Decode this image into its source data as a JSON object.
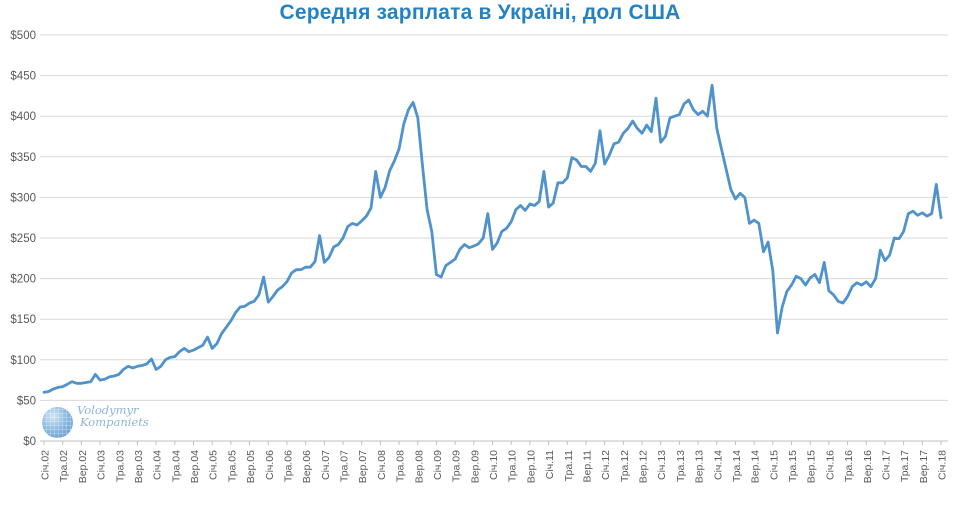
{
  "page": {
    "background": "#ffffff"
  },
  "watermark": {
    "line1": "Volodymyr",
    "line2": "Kompaniets"
  },
  "colors": {
    "title_blue": "#2482c3",
    "line_blue": "#4f92cc",
    "gridline": "#d9d9d9",
    "axis_line": "#bfbfbf",
    "tick_text": "#595959"
  },
  "chart_data": {
    "type": "line",
    "title": "Середня зарплата в Україні, дол США",
    "xlabel": "",
    "ylabel": "",
    "ylim": [
      0,
      500
    ],
    "grid": "horizontal",
    "legend": "none",
    "x_range_note": "monthly data, Jan 2002 - Jan 2018",
    "y_ticks": [
      0,
      50,
      100,
      150,
      200,
      250,
      300,
      350,
      400,
      450,
      500
    ],
    "y_tick_labels": [
      "$0",
      "$50",
      "$100",
      "$150",
      "$200",
      "$250",
      "$300",
      "$350",
      "$400",
      "$450",
      "$500"
    ],
    "x_tick_every_n_points": 4,
    "x_tick_labels": [
      "Січ.02",
      "Тра.02",
      "Вер.02",
      "Січ.03",
      "Тра.03",
      "Вер.03",
      "Січ.04",
      "Тра.04",
      "Вер.04",
      "Січ.05",
      "Тра.05",
      "Вер.05",
      "Січ.06",
      "Тра.06",
      "Вер.06",
      "Січ.07",
      "Тра.07",
      "Вер.07",
      "Січ.08",
      "Тра.08",
      "Вер.08",
      "Січ.09",
      "Тра.09",
      "Вер.09",
      "Січ.10",
      "Тра.10",
      "Вер.10",
      "Січ.11",
      "Тра.11",
      "Вер.11",
      "Січ.12",
      "Тра.12",
      "Вер.12",
      "Січ.13",
      "Тра.13",
      "Вер.13",
      "Січ.14",
      "Тра.14",
      "Вер.14",
      "Січ.15",
      "Тра.15",
      "Вер.15",
      "Січ.16",
      "Тра.16",
      "Вер.16",
      "Січ.17",
      "Тра.17",
      "Вер.17",
      "Січ.18"
    ],
    "series": [
      {
        "name": "Середня зарплата, дол США",
        "color": "#4f92cc",
        "values": [
          60,
          61,
          64,
          66,
          67,
          70,
          73,
          71,
          71,
          72,
          73,
          82,
          75,
          76,
          79,
          80,
          82,
          88,
          92,
          90,
          92,
          93,
          95,
          101,
          88,
          92,
          100,
          103,
          104,
          110,
          114,
          110,
          112,
          115,
          118,
          128,
          114,
          120,
          132,
          140,
          148,
          158,
          165,
          166,
          170,
          172,
          180,
          202,
          171,
          178,
          186,
          190,
          196,
          207,
          211,
          211,
          214,
          214,
          221,
          253,
          220,
          226,
          239,
          242,
          250,
          264,
          268,
          266,
          271,
          277,
          287,
          332,
          300,
          312,
          333,
          345,
          360,
          390,
          408,
          417,
          398,
          340,
          285,
          258,
          205,
          202,
          216,
          220,
          224,
          236,
          242,
          238,
          240,
          243,
          250,
          280,
          236,
          244,
          258,
          262,
          270,
          285,
          290,
          284,
          292,
          290,
          295,
          332,
          288,
          293,
          318,
          318,
          324,
          349,
          346,
          338,
          338,
          332,
          342,
          382,
          341,
          352,
          366,
          368,
          379,
          385,
          394,
          385,
          379,
          389,
          381,
          422,
          368,
          375,
          398,
          400,
          402,
          415,
          420,
          408,
          402,
          406,
          400,
          438,
          385,
          360,
          335,
          310,
          298,
          305,
          300,
          268,
          272,
          268,
          233,
          245,
          210,
          133,
          165,
          184,
          192,
          203,
          200,
          192,
          201,
          205,
          195,
          220,
          185,
          180,
          172,
          170,
          178,
          190,
          195,
          192,
          196,
          190,
          200,
          235,
          222,
          229,
          250,
          249,
          258,
          280,
          283,
          278,
          281,
          277,
          280,
          316,
          275
        ]
      }
    ]
  }
}
